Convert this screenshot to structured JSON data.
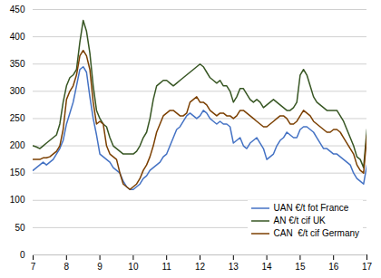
{
  "chart_data": {
    "type": "line",
    "x": [
      7.0,
      7.1,
      7.2,
      7.3,
      7.4,
      7.5,
      7.6,
      7.7,
      7.8,
      7.9,
      8.0,
      8.1,
      8.2,
      8.3,
      8.4,
      8.5,
      8.6,
      8.7,
      8.8,
      8.9,
      9.0,
      9.1,
      9.2,
      9.3,
      9.4,
      9.5,
      9.6,
      9.7,
      9.8,
      9.9,
      10.0,
      10.1,
      10.2,
      10.3,
      10.4,
      10.5,
      10.6,
      10.7,
      10.8,
      10.9,
      11.0,
      11.1,
      11.2,
      11.3,
      11.4,
      11.5,
      11.6,
      11.7,
      11.8,
      11.9,
      12.0,
      12.1,
      12.2,
      12.3,
      12.4,
      12.5,
      12.6,
      12.7,
      12.8,
      12.9,
      13.0,
      13.1,
      13.2,
      13.3,
      13.4,
      13.5,
      13.6,
      13.7,
      13.8,
      13.9,
      14.0,
      14.1,
      14.2,
      14.3,
      14.4,
      14.5,
      14.6,
      14.7,
      14.8,
      14.9,
      15.0,
      15.1,
      15.2,
      15.3,
      15.4,
      15.5,
      15.6,
      15.7,
      15.8,
      15.9,
      16.0,
      16.1,
      16.2,
      16.3,
      16.4,
      16.5,
      16.6,
      16.7,
      16.8,
      16.9,
      17.0
    ],
    "series": [
      {
        "name": "UAN €/t fot France",
        "color": "#4472C4",
        "values": [
          155,
          160,
          165,
          170,
          165,
          170,
          175,
          185,
          195,
          210,
          240,
          260,
          280,
          310,
          340,
          345,
          335,
          290,
          250,
          220,
          185,
          180,
          175,
          170,
          160,
          155,
          150,
          135,
          125,
          120,
          120,
          125,
          130,
          140,
          145,
          155,
          160,
          165,
          170,
          180,
          185,
          200,
          215,
          230,
          235,
          245,
          255,
          260,
          255,
          250,
          255,
          265,
          260,
          250,
          245,
          240,
          245,
          240,
          240,
          235,
          205,
          210,
          215,
          200,
          195,
          205,
          210,
          215,
          205,
          195,
          175,
          180,
          185,
          200,
          210,
          215,
          225,
          220,
          215,
          215,
          230,
          235,
          235,
          230,
          225,
          215,
          205,
          195,
          195,
          190,
          185,
          185,
          180,
          175,
          170,
          165,
          150,
          140,
          135,
          130,
          165
        ]
      },
      {
        "name": "AN €/t cif UK",
        "color": "#375623",
        "values": [
          200,
          198,
          195,
          200,
          205,
          210,
          215,
          220,
          240,
          280,
          310,
          325,
          330,
          340,
          390,
          430,
          410,
          370,
          310,
          265,
          250,
          240,
          235,
          215,
          200,
          195,
          190,
          185,
          185,
          185,
          185,
          190,
          200,
          215,
          225,
          250,
          285,
          310,
          315,
          320,
          320,
          315,
          310,
          315,
          320,
          325,
          330,
          335,
          340,
          345,
          350,
          345,
          335,
          325,
          320,
          315,
          320,
          310,
          310,
          300,
          280,
          290,
          305,
          305,
          295,
          285,
          280,
          285,
          280,
          270,
          275,
          280,
          285,
          280,
          275,
          270,
          265,
          265,
          270,
          280,
          330,
          340,
          330,
          310,
          290,
          280,
          275,
          270,
          265,
          265,
          265,
          265,
          255,
          245,
          230,
          215,
          200,
          180,
          175,
          160,
          230
        ]
      },
      {
        "name": "CAN  €/t cif Germany",
        "color": "#7B3F00",
        "values": [
          175,
          175,
          175,
          178,
          178,
          180,
          185,
          190,
          200,
          230,
          285,
          300,
          310,
          330,
          365,
          375,
          365,
          340,
          280,
          240,
          245,
          240,
          200,
          185,
          180,
          175,
          150,
          130,
          125,
          120,
          125,
          130,
          140,
          155,
          165,
          180,
          200,
          225,
          240,
          255,
          260,
          265,
          265,
          260,
          255,
          255,
          260,
          280,
          285,
          290,
          280,
          280,
          275,
          265,
          260,
          255,
          260,
          260,
          255,
          255,
          250,
          255,
          265,
          265,
          260,
          255,
          250,
          245,
          240,
          235,
          235,
          240,
          245,
          250,
          255,
          255,
          250,
          240,
          240,
          245,
          255,
          265,
          260,
          255,
          245,
          240,
          235,
          230,
          225,
          225,
          230,
          230,
          225,
          215,
          205,
          195,
          185,
          165,
          155,
          150,
          220
        ]
      }
    ],
    "xlim": [
      7,
      17
    ],
    "xticks": [
      7,
      8,
      9,
      10,
      11,
      12,
      13,
      14,
      15,
      16,
      17
    ],
    "ylim": [
      0,
      450
    ],
    "yticks": [
      0,
      50,
      100,
      150,
      200,
      250,
      300,
      350,
      400,
      450
    ],
    "grid": true,
    "legend": "lower right"
  }
}
